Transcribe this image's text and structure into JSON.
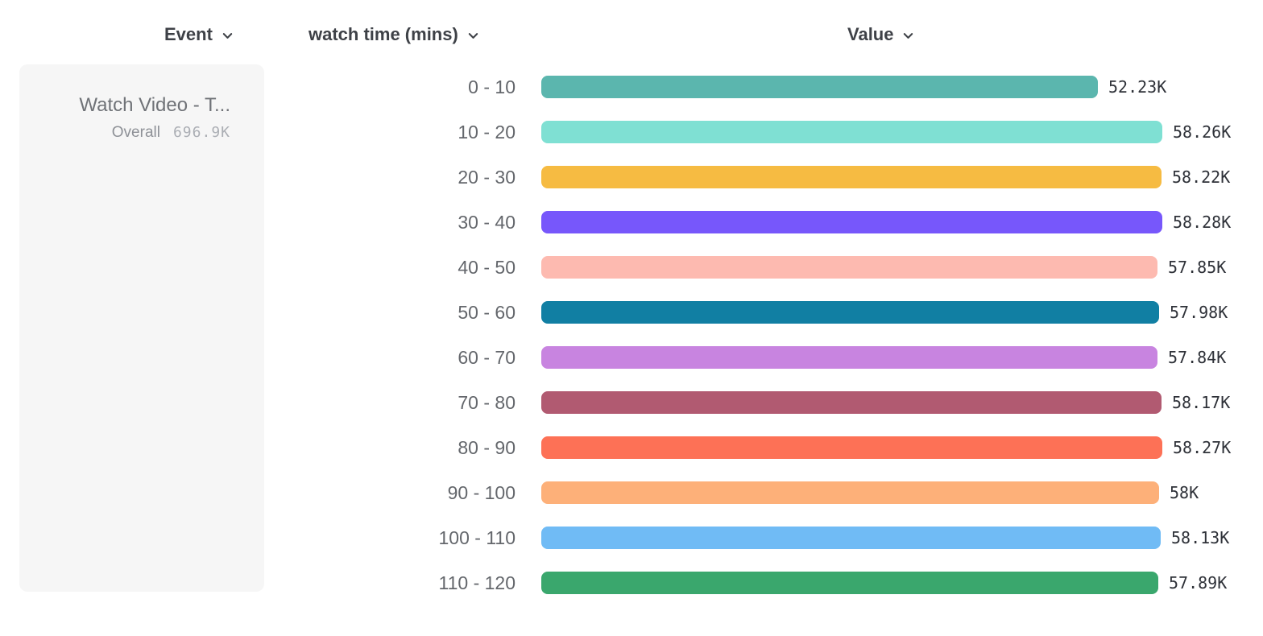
{
  "header": {
    "columns": [
      {
        "id": "event",
        "label": "Event"
      },
      {
        "id": "breakdown",
        "label": "watch time (mins)"
      },
      {
        "id": "value",
        "label": "Value"
      }
    ]
  },
  "event_card": {
    "event_name": "Watch Video - T...",
    "overall_label": "Overall",
    "overall_value": "696.9K"
  },
  "chart_data": {
    "type": "bar",
    "orientation": "horizontal",
    "title": "",
    "xlabel": "Value",
    "ylabel": "watch time (mins)",
    "xlim": [
      0,
      58280
    ],
    "grid": false,
    "categories": [
      "0 - 10",
      "10 - 20",
      "20 - 30",
      "30 - 40",
      "40 - 50",
      "50 - 60",
      "60 - 70",
      "70 - 80",
      "80 - 90",
      "90 - 100",
      "100 - 110",
      "110 - 120"
    ],
    "values": [
      52230,
      58260,
      58220,
      58280,
      57850,
      57980,
      57840,
      58170,
      58270,
      58000,
      58130,
      57890
    ],
    "value_labels": [
      "52.23K",
      "58.26K",
      "58.22K",
      "58.28K",
      "57.85K",
      "57.98K",
      "57.84K",
      "58.17K",
      "58.27K",
      "58K",
      "58.13K",
      "57.89K"
    ],
    "colors": [
      "#5bb6ae",
      "#7fe0d3",
      "#f6bb42",
      "#7757fb",
      "#fdbab0",
      "#117fa3",
      "#c884e0",
      "#b15a71",
      "#fd7156",
      "#fdb079",
      "#70bbf5",
      "#3aa76d"
    ]
  }
}
